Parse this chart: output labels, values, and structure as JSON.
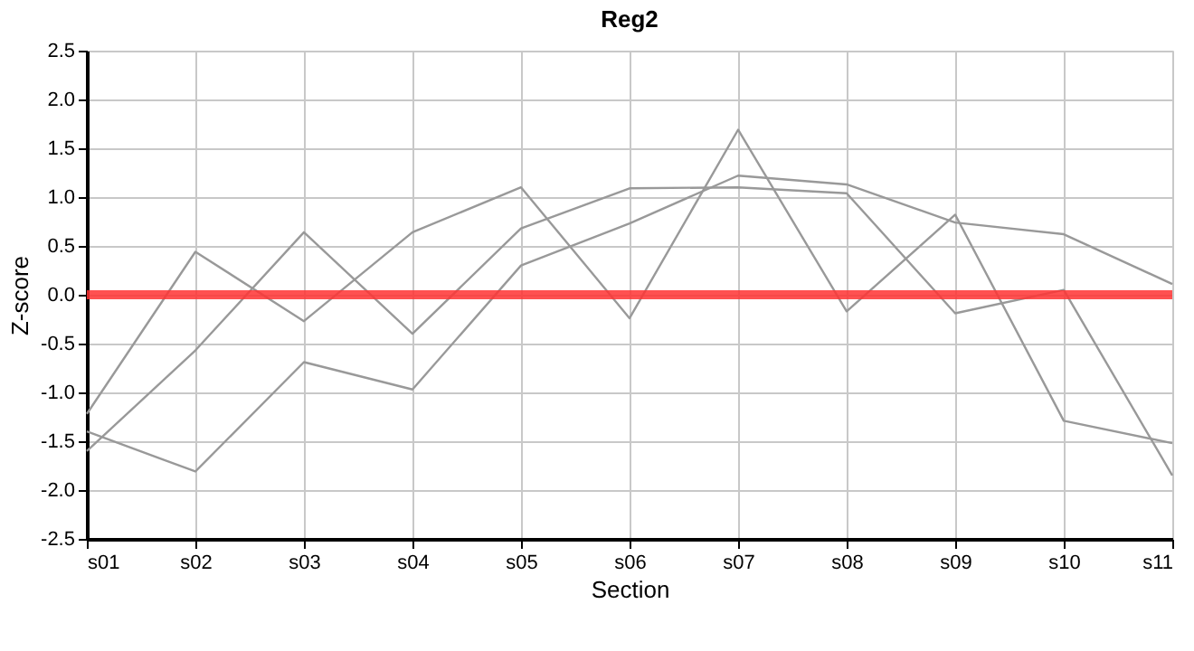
{
  "chart_data": {
    "type": "line",
    "title": "Reg2",
    "xlabel": "Section",
    "ylabel": "Z-score",
    "categories": [
      "s01",
      "s02",
      "s03",
      "s04",
      "s05",
      "s06",
      "s07",
      "s08",
      "s09",
      "s10",
      "s11"
    ],
    "series": [
      {
        "color": "#999999",
        "values": [
          -1.22,
          0.44,
          -0.27,
          0.64,
          1.1,
          -0.24,
          1.69,
          -0.17,
          0.82,
          -1.29,
          -1.52
        ]
      },
      {
        "color": "#999999",
        "values": [
          -1.6,
          -0.57,
          0.64,
          -0.4,
          0.68,
          1.09,
          1.1,
          1.04,
          -0.19,
          0.05,
          -1.85
        ]
      },
      {
        "color": "#999999",
        "values": [
          -1.4,
          -1.81,
          -0.69,
          -0.97,
          0.3,
          0.73,
          1.22,
          1.13,
          0.74,
          0.62,
          0.11
        ]
      }
    ],
    "ylim": [
      -2.5,
      2.5
    ],
    "yticks": [
      {
        "value": -2.5,
        "label": "-2.5"
      },
      {
        "value": -2,
        "label": "-2.0"
      },
      {
        "value": -1.5,
        "label": "-1.5"
      },
      {
        "value": -1,
        "label": "-1.0"
      },
      {
        "value": -0.5,
        "label": "-0.5"
      },
      {
        "value": 0,
        "label": "0.0"
      },
      {
        "value": 0.5,
        "label": "0.5"
      },
      {
        "value": 1,
        "label": "1.0"
      },
      {
        "value": 1.5,
        "label": "1.5"
      },
      {
        "value": 2,
        "label": "2.0"
      },
      {
        "value": 2.5,
        "label": "2.5"
      }
    ],
    "ref_lines": [
      {
        "axis": "y",
        "value": 0,
        "color": "#ff3333"
      }
    ],
    "grid": true,
    "marker": "none",
    "line_style": "solid"
  }
}
